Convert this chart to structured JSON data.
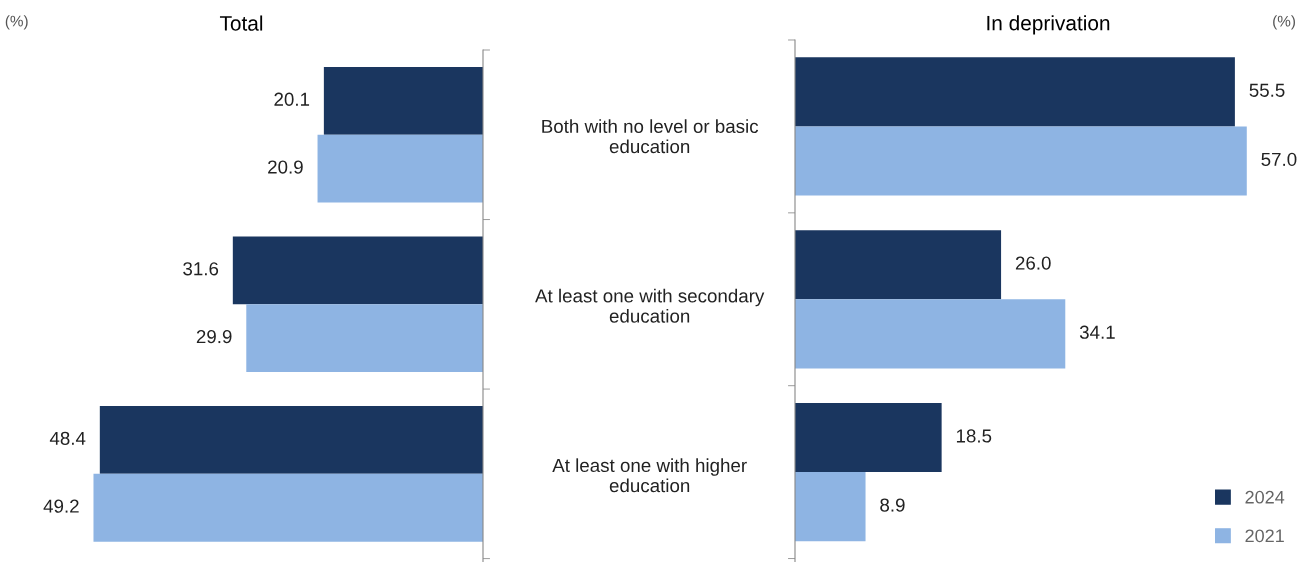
{
  "chart_data": [
    {
      "type": "bar",
      "orientation": "horizontal",
      "title": "Total",
      "annotations": [
        "(%)"
      ],
      "categories": [
        "Both with no level or basic education",
        "At least one with secondary education",
        "At least one with higher education"
      ],
      "series": [
        {
          "color": "#1a365f",
          "values": [
            20.1,
            31.6,
            48.4
          ],
          "value_labels": [
            "20.1",
            "31.6",
            "48.4"
          ]
        },
        {
          "color": "#8eb4e3",
          "values": [
            20.9,
            29.9,
            49.2
          ],
          "value_labels": [
            "20.9",
            "29.9",
            "49.2"
          ]
        }
      ],
      "legend": false,
      "tick_labels": "y",
      "grid": false
    },
    {
      "type": "bar",
      "orientation": "horizontal",
      "title": "In deprivation",
      "annotations": [
        "(%)"
      ],
      "categories": [
        null,
        null,
        null
      ],
      "series": [
        {
          "name": "2024",
          "color": "#1a365f",
          "values": [
            55.5,
            26.0,
            18.5
          ],
          "value_labels": [
            "55.5",
            "26.0",
            "18.5"
          ]
        },
        {
          "name": "2021",
          "color": "#8eb4e3",
          "values": [
            57.0,
            34.1,
            8.9
          ],
          "value_labels": [
            "57.0",
            "34.1",
            "8.9"
          ]
        }
      ],
      "legend": "bottom right",
      "tick_labels": false,
      "grid": false
    }
  ]
}
